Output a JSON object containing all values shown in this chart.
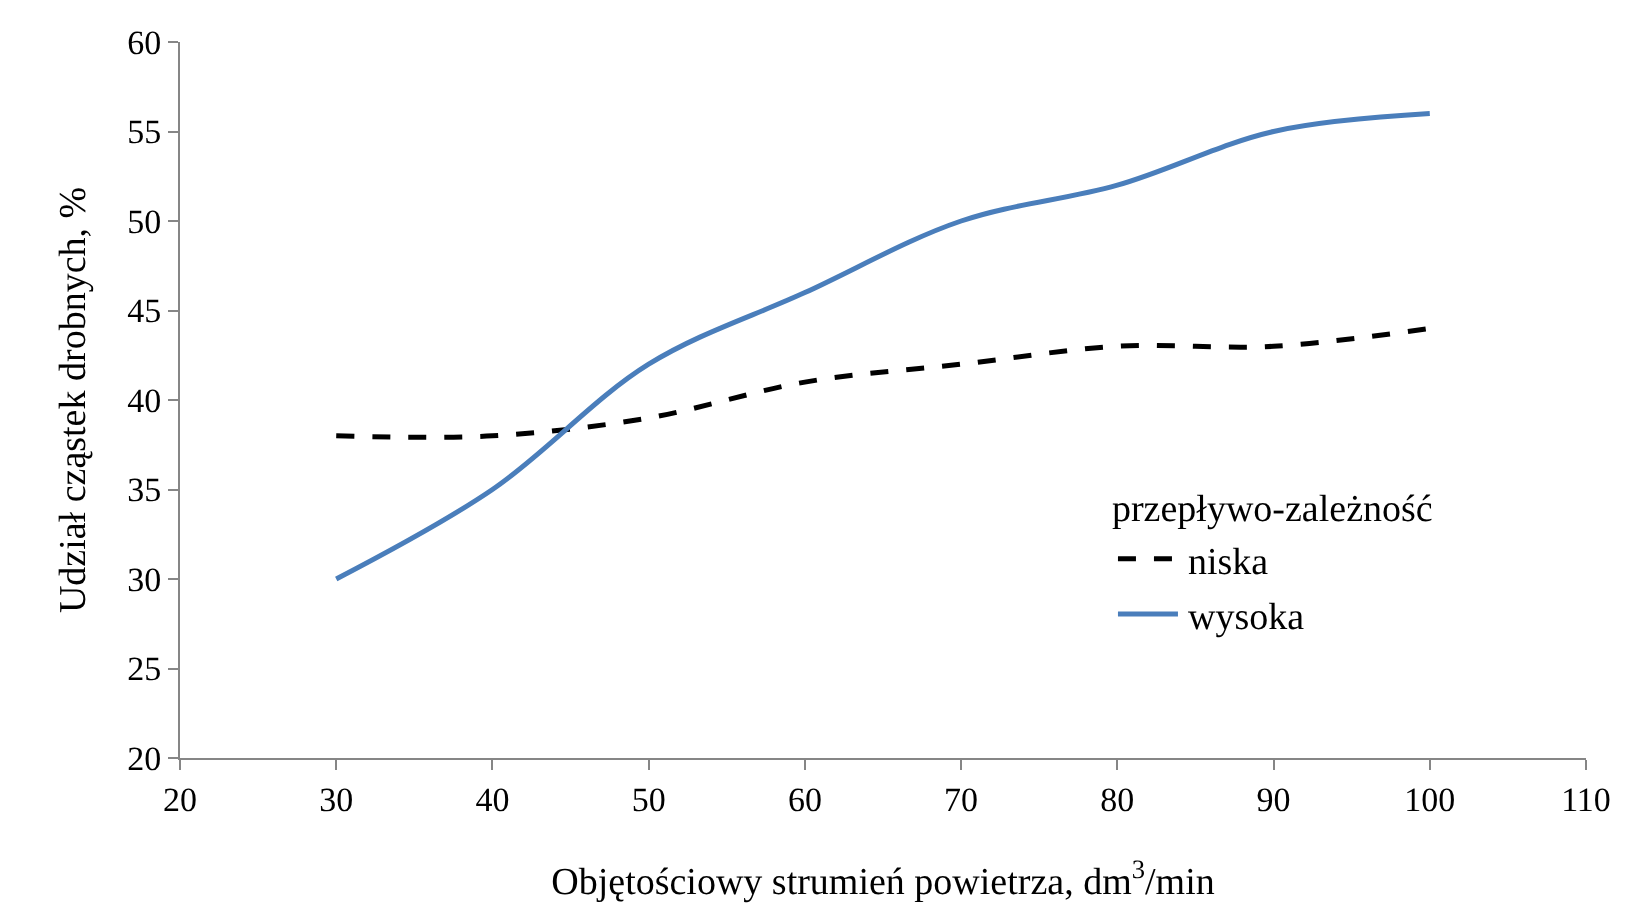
{
  "chart_data": {
    "type": "line",
    "xlabel": "Objętościowy strumień powietrza, dm$^{3}$/min",
    "ylabel": "Udział cząstek drobnych, %",
    "legend_title": "przepływo-zależność",
    "x": [
      30,
      40,
      50,
      60,
      70,
      80,
      90,
      100
    ],
    "series": [
      {
        "name": "niska",
        "color": "#000000",
        "line_style": "dashed",
        "values": [
          38,
          38,
          39,
          41,
          42,
          43,
          43,
          44
        ]
      },
      {
        "name": "wysoka",
        "color": "#4a7ebb",
        "line_style": "solid",
        "values": [
          30,
          35,
          42,
          46,
          50,
          52,
          55,
          56
        ]
      }
    ],
    "xlim": [
      20,
      110
    ],
    "xticks": [
      20,
      30,
      40,
      50,
      60,
      70,
      80,
      90,
      100,
      110
    ],
    "ylim": [
      20,
      60
    ],
    "yticks": [
      20,
      25,
      30,
      35,
      40,
      45,
      50,
      55,
      60
    ],
    "grid": false,
    "legend": "right",
    "marker": "none"
  }
}
